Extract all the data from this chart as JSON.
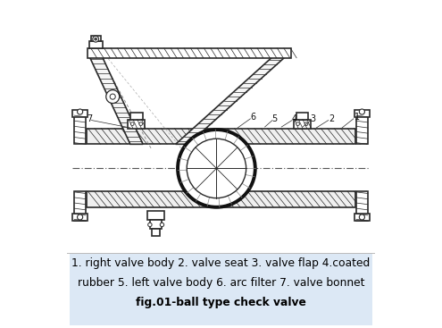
{
  "title_line1": "1. right valve body 2. valve seat 3. valve flap 4.coated",
  "title_line2": "rubber 5. left valve body 6. arc filter 7. valve bonnet",
  "title_line3": "fig.01-ball type check valve",
  "bg_color": "#ffffff",
  "line_color": "#2a2a2a",
  "text_bg": "#dce8f5",
  "label_color": "#111111",
  "figsize": [
    4.95,
    3.67
  ],
  "dpi": 100
}
